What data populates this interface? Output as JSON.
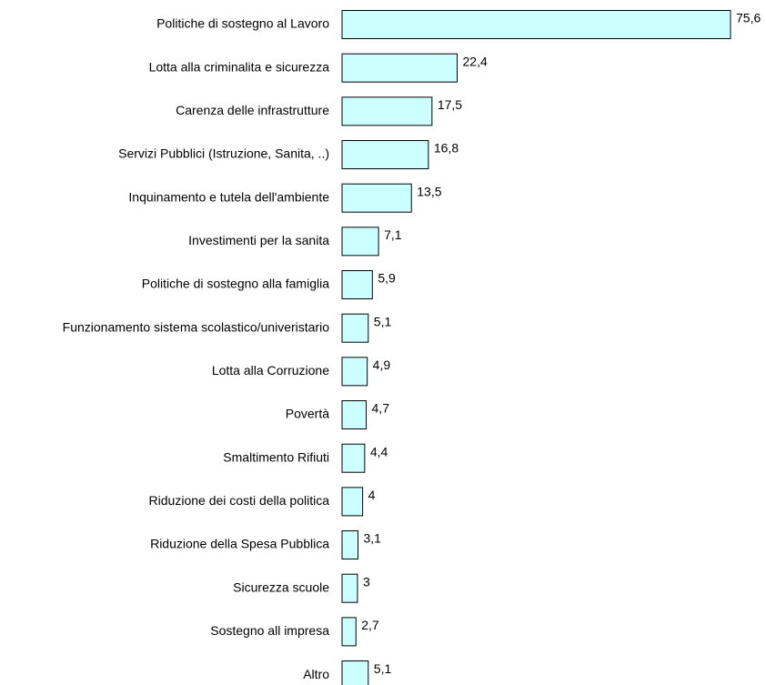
{
  "chart_data": {
    "type": "barh",
    "color": "#ccffff",
    "categories": [
      "Politiche di sostegno al Lavoro",
      "Lotta alla criminalita  e sicurezza",
      "Carenza delle infrastrutture",
      "Servizi Pubblici (Istruzione, Sanita, ..)",
      "Inquinamento e tutela dell'ambiente",
      "Investimenti per la sanita",
      "Politiche di sostegno alla famiglia",
      "Funzionamento sistema scolastico/univeristario",
      "Lotta alla Corruzione",
      "Povertà",
      "Smaltimento Rifiuti",
      "Riduzione dei costi della politica",
      "Riduzione della Spesa Pubblica",
      "Sicurezza scuole",
      "Sostegno all impresa",
      "Altro"
    ],
    "values": [
      75.6,
      22.4,
      17.5,
      16.8,
      13.5,
      7.1,
      5.9,
      5.1,
      4.9,
      4.7,
      4.4,
      4,
      3.1,
      3,
      2.7,
      5.1
    ],
    "value_labels": [
      "75,6",
      "22,4",
      "17,5",
      "16,8",
      "13,5",
      "7,1",
      "5,9",
      "5,1",
      "4,9",
      "4,7",
      "4,4",
      "4",
      "3,1",
      "3",
      "2,7",
      "5,1"
    ]
  }
}
